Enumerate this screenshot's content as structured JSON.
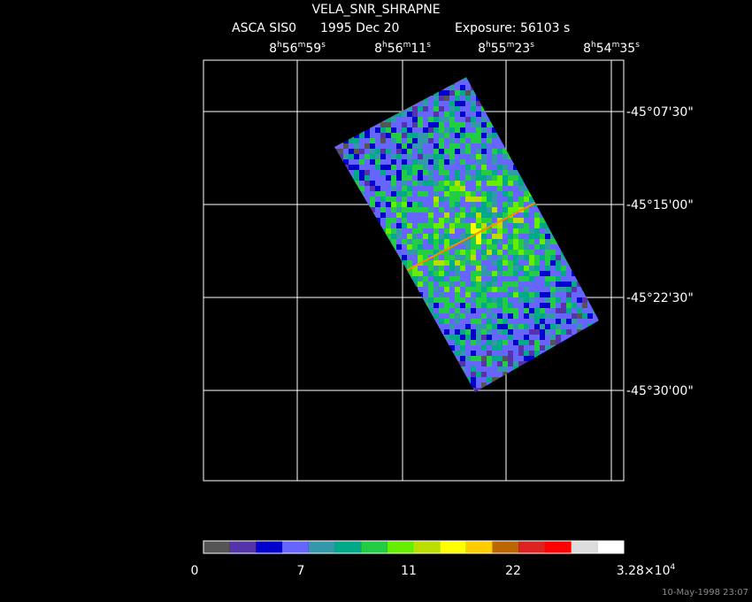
{
  "header": {
    "title": "VELA_SNR_SHRAPNE",
    "instrument": "ASCA SIS0",
    "date": "1995 Dec 20",
    "exposure": "Exposure: 56103 s"
  },
  "ra_labels": [
    [
      "8",
      "h",
      "56",
      "m",
      "59",
      "s"
    ],
    [
      "8",
      "h",
      "56",
      "m",
      "11",
      "s"
    ],
    [
      "8",
      "h",
      "55",
      "m",
      "23",
      "s"
    ],
    [
      "8",
      "h",
      "54",
      "m",
      "35",
      "s"
    ]
  ],
  "dec_labels": [
    "-45°07'30\"",
    "-45°15'00\"",
    "-45°22'30\"",
    "-45°30'00\""
  ],
  "colorbar": {
    "colors": [
      "#555555",
      "#5533aa",
      "#0000cc",
      "#6666ff",
      "#3399aa",
      "#00aa88",
      "#22cc44",
      "#66ee00",
      "#bbdd00",
      "#ffff00",
      "#ffcc00",
      "#bb6600",
      "#dd2222",
      "#ff0000",
      "#dddddd",
      "#ffffff"
    ],
    "labels": [
      [
        "0"
      ],
      [
        "7"
      ],
      [
        "11"
      ],
      [
        "22"
      ],
      [
        "3.28×10",
        "4"
      ]
    ]
  },
  "timestamp": "10-May-1998 23:07"
}
